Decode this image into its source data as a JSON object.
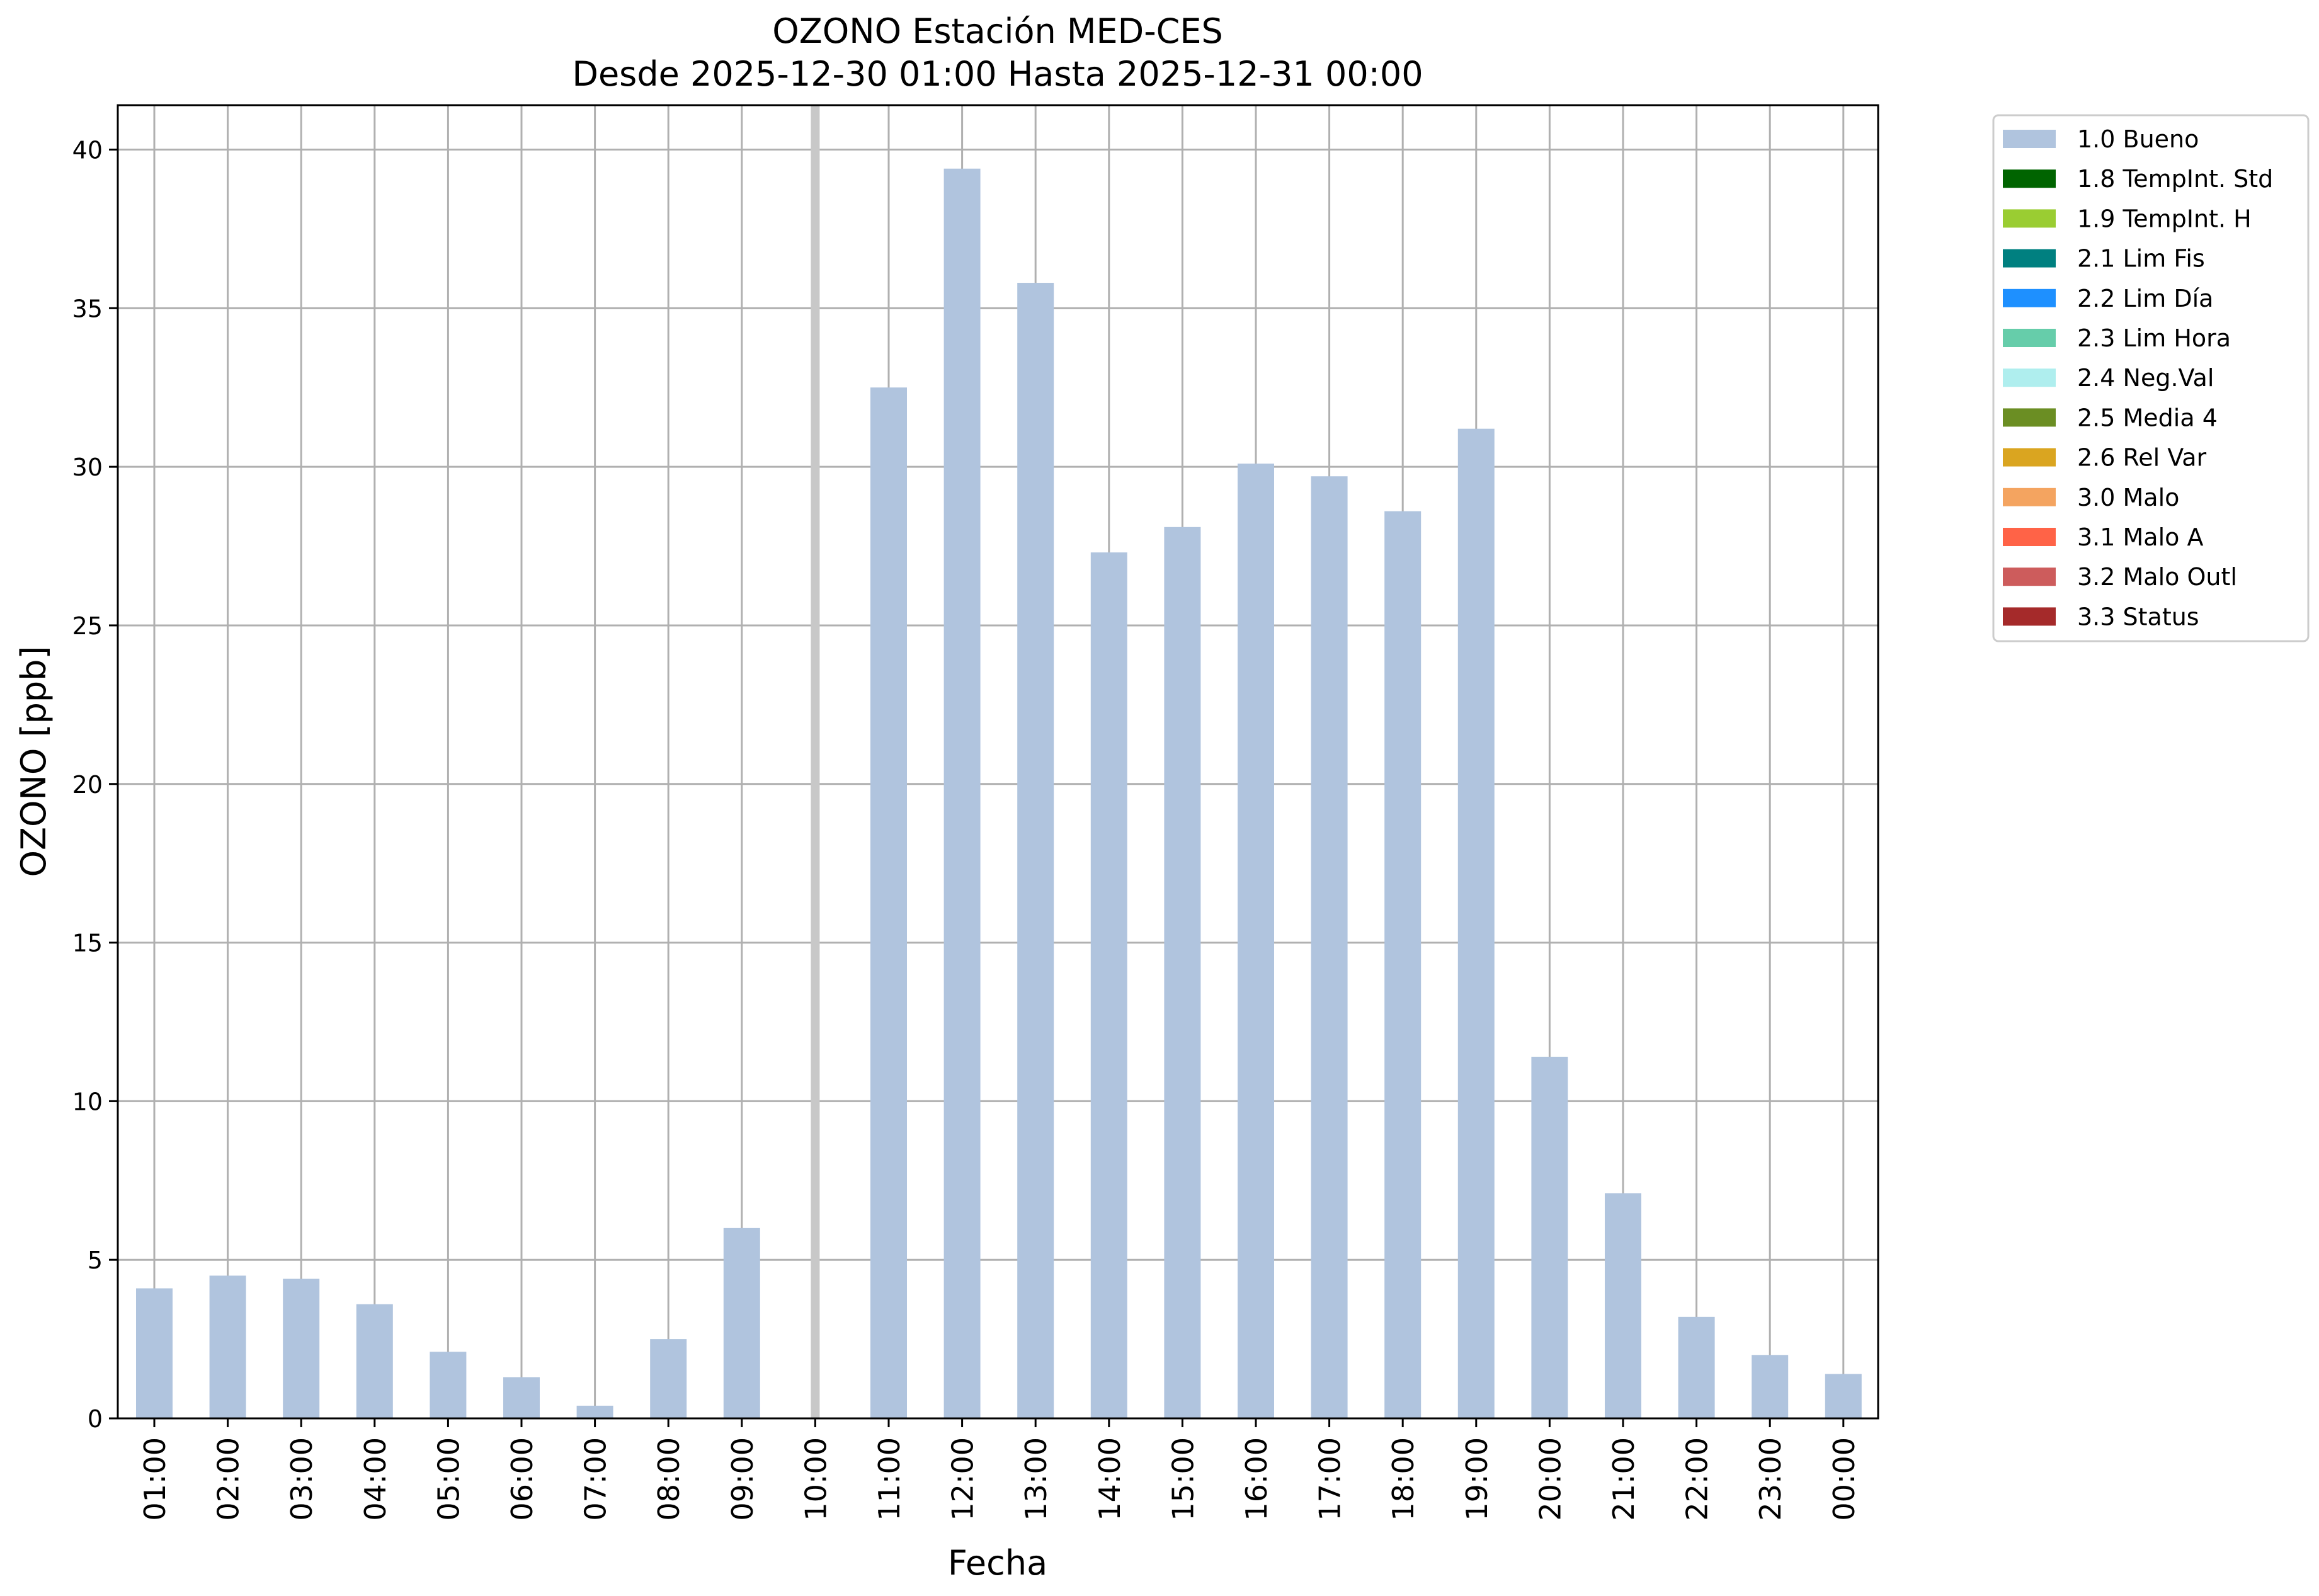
{
  "chart_data": {
    "type": "bar",
    "title": "OZONO Estación MED-CES",
    "subtitle": "Desde 2025-12-30 01:00 Hasta 2025-12-31 00:00",
    "xlabel": "Fecha",
    "ylabel": "OZONO [ppb]",
    "ylim": [
      0,
      41.4
    ],
    "yticks": [
      0,
      5,
      10,
      15,
      20,
      25,
      30,
      35,
      40
    ],
    "grid": true,
    "legend_position": "outside-top-right",
    "categories": [
      "01:00",
      "02:00",
      "03:00",
      "04:00",
      "05:00",
      "06:00",
      "07:00",
      "08:00",
      "09:00",
      "10:00",
      "11:00",
      "12:00",
      "13:00",
      "14:00",
      "15:00",
      "16:00",
      "17:00",
      "18:00",
      "19:00",
      "20:00",
      "21:00",
      "22:00",
      "23:00",
      "00:00"
    ],
    "series": [
      {
        "name": "1.0 Bueno",
        "color": "#b0c4de",
        "values": [
          4.1,
          4.5,
          4.4,
          3.6,
          2.1,
          1.3,
          0.4,
          2.5,
          6.0,
          null,
          32.5,
          39.4,
          35.8,
          27.3,
          28.1,
          30.1,
          29.7,
          28.6,
          31.2,
          11.4,
          7.1,
          3.2,
          2.0,
          1.4
        ]
      }
    ],
    "missing_marker_category": "10:00",
    "legend": [
      {
        "label": "1.0 Bueno",
        "color": "#b0c4de"
      },
      {
        "label": "1.8 TempInt. Std",
        "color": "#006400"
      },
      {
        "label": "1.9 TempInt. H",
        "color": "#9acd32"
      },
      {
        "label": "2.1 Lim Fis",
        "color": "#008080"
      },
      {
        "label": "2.2 Lim Día",
        "color": "#1e90ff"
      },
      {
        "label": "2.3 Lim Hora",
        "color": "#66cdaa"
      },
      {
        "label": "2.4 Neg.Val",
        "color": "#afeeee"
      },
      {
        "label": "2.5 Media 4",
        "color": "#6b8e23"
      },
      {
        "label": "2.6 Rel Var",
        "color": "#daa520"
      },
      {
        "label": "3.0 Malo",
        "color": "#f4a460"
      },
      {
        "label": "3.1 Malo A",
        "color": "#ff6347"
      },
      {
        "label": "3.2 Malo Outl",
        "color": "#cd5c5c"
      },
      {
        "label": "3.3 Status",
        "color": "#a52a2a"
      }
    ]
  }
}
